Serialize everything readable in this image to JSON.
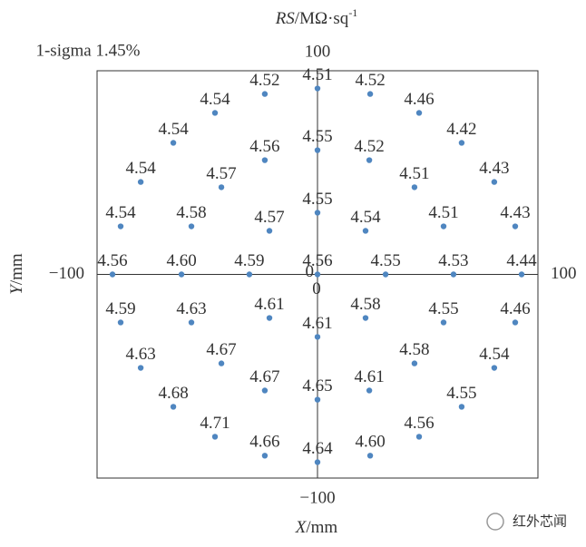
{
  "chart_data": {
    "type": "scatter",
    "title_var": "RS",
    "title_unit": "/MΩ·sq",
    "title_exp": "-1",
    "annotation": "1-sigma 1.45%",
    "xlabel_var": "X",
    "xlabel_unit": "/mm",
    "ylabel_var": "Y",
    "ylabel_unit": "/mm",
    "watermark": "红外芯闻",
    "color": "#4f86c0",
    "xlim": [
      -100,
      100
    ],
    "ylim": [
      -100,
      100
    ],
    "xticks": [
      {
        "value": -100,
        "label": "−100"
      },
      0,
      100
    ],
    "yticks": [
      {
        "value": -100,
        "label": "−100"
      },
      0,
      100
    ],
    "x": [
      -23.9,
      0,
      23.9,
      -46.5,
      46.1,
      -65.4,
      65.4,
      -23.9,
      0,
      23.5,
      -80.2,
      80.2,
      -43.6,
      44,
      0,
      -89.3,
      -57.2,
      -21.8,
      21.8,
      57.2,
      89.7,
      -93,
      -61.7,
      -30.9,
      0,
      30.9,
      61.7,
      92.6,
      -89.3,
      -57.2,
      -21.8,
      21.8,
      57.2,
      89.7,
      0,
      -80.2,
      -43.6,
      44,
      80.2,
      -23.9,
      0,
      23.5,
      -65.4,
      65.4,
      -46.5,
      46.1,
      -23.9,
      0,
      23.9
    ],
    "y": [
      88.6,
      91.3,
      88.6,
      79.3,
      79.3,
      64.6,
      64.6,
      56.1,
      61,
      56.1,
      45.4,
      45.4,
      42.8,
      42.8,
      30.3,
      23.6,
      23.6,
      21.4,
      21.4,
      23.6,
      23.6,
      0,
      0,
      0,
      0,
      0,
      0,
      0,
      -23.6,
      -23.6,
      -21.4,
      -21.4,
      -23.6,
      -23.6,
      -30.7,
      -45.9,
      -43.7,
      -43.7,
      -45.9,
      -57,
      -61.5,
      -57,
      -65,
      -65,
      -79.7,
      -79.7,
      -89,
      -92.2,
      -89
    ],
    "values": [
      4.52,
      4.51,
      4.52,
      4.54,
      4.46,
      4.54,
      4.42,
      4.56,
      4.55,
      4.52,
      4.54,
      4.43,
      4.57,
      4.51,
      4.55,
      4.54,
      4.58,
      4.57,
      4.54,
      4.51,
      4.43,
      4.56,
      4.6,
      4.59,
      4.56,
      4.55,
      4.53,
      4.44,
      4.59,
      4.63,
      4.61,
      4.58,
      4.55,
      4.46,
      4.61,
      4.63,
      4.67,
      4.58,
      4.54,
      4.67,
      4.65,
      4.61,
      4.68,
      4.55,
      4.71,
      4.56,
      4.66,
      4.64,
      4.6
    ],
    "value_labels": [
      "4.52",
      "4.51",
      "4.52",
      "4.54",
      "4.46",
      "4.54",
      "4.42",
      "4.56",
      "4.55",
      "4.52",
      "4.54",
      "4.43",
      "4.57",
      "4.51",
      "4.55",
      "4.54",
      "4.58",
      "4.57",
      "4.54",
      "4.51",
      "4.43",
      "4.56",
      "4.60",
      "4.59",
      "4.56",
      "4.55",
      "4.53",
      "4.44",
      "4.59",
      "4.63",
      "4.61",
      "4.58",
      "4.55",
      "4.46",
      "4.61",
      "4.63",
      "4.67",
      "4.58",
      "4.54",
      "4.67",
      "4.65",
      "4.61",
      "4.68",
      "4.55",
      "4.71",
      "4.56",
      "4.66",
      "4.64",
      "4.60"
    ]
  }
}
